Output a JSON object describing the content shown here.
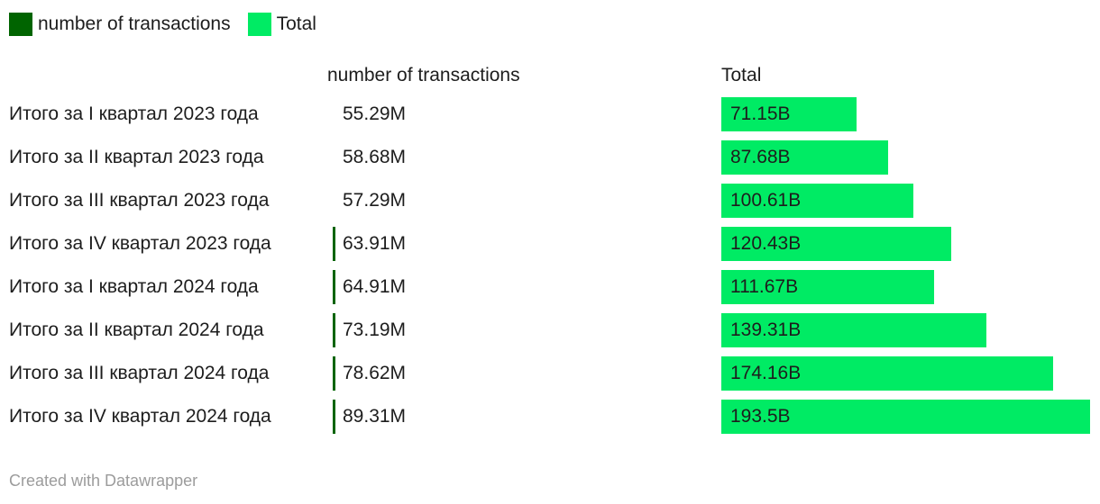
{
  "legend": {
    "items": [
      {
        "label": "number of transactions",
        "color": "#006400"
      },
      {
        "label": "Total",
        "color": "#00eb64"
      }
    ]
  },
  "table": {
    "column_headers": [
      "number of transactions",
      "Total"
    ]
  },
  "chart_data": {
    "type": "bar",
    "orientation": "horizontal",
    "legend_position": "top-left",
    "value_labels_inside_bars": true,
    "categories": [
      "Итого за I квартал 2023 года",
      "Итого за II квартал 2023 года",
      "Итого за III квартал 2023 года",
      "Итого за IV квартал 2023 года",
      "Итого за I квартал 2024 года",
      "Итого за II квартал 2024 года",
      "Итого за III квартал 2024 года",
      "Итого за IV квартал 2024 года"
    ],
    "series": [
      {
        "name": "number of transactions",
        "unit": "M",
        "color": "#006400",
        "values": [
          55.29,
          58.68,
          57.29,
          63.91,
          64.91,
          73.19,
          78.62,
          89.31
        ],
        "labels": [
          "55.29M",
          "58.68M",
          "57.29M",
          "63.91M",
          "64.91M",
          "73.19M",
          "78.62M",
          "89.31M"
        ],
        "tiny_bar_visible": [
          false,
          false,
          false,
          true,
          true,
          true,
          true,
          true
        ]
      },
      {
        "name": "Total",
        "unit": "B",
        "color": "#00eb64",
        "values": [
          71.15,
          87.68,
          100.61,
          120.43,
          111.67,
          139.31,
          174.16,
          193.5
        ],
        "labels": [
          "71.15B",
          "87.68B",
          "100.61B",
          "120.43B",
          "111.67B",
          "139.31B",
          "174.16B",
          "193.5B"
        ]
      }
    ],
    "value_axis": {
      "min": 0,
      "max": 193.5,
      "gridlines": false
    }
  },
  "footer": {
    "credit": "Created with Datawrapper"
  }
}
